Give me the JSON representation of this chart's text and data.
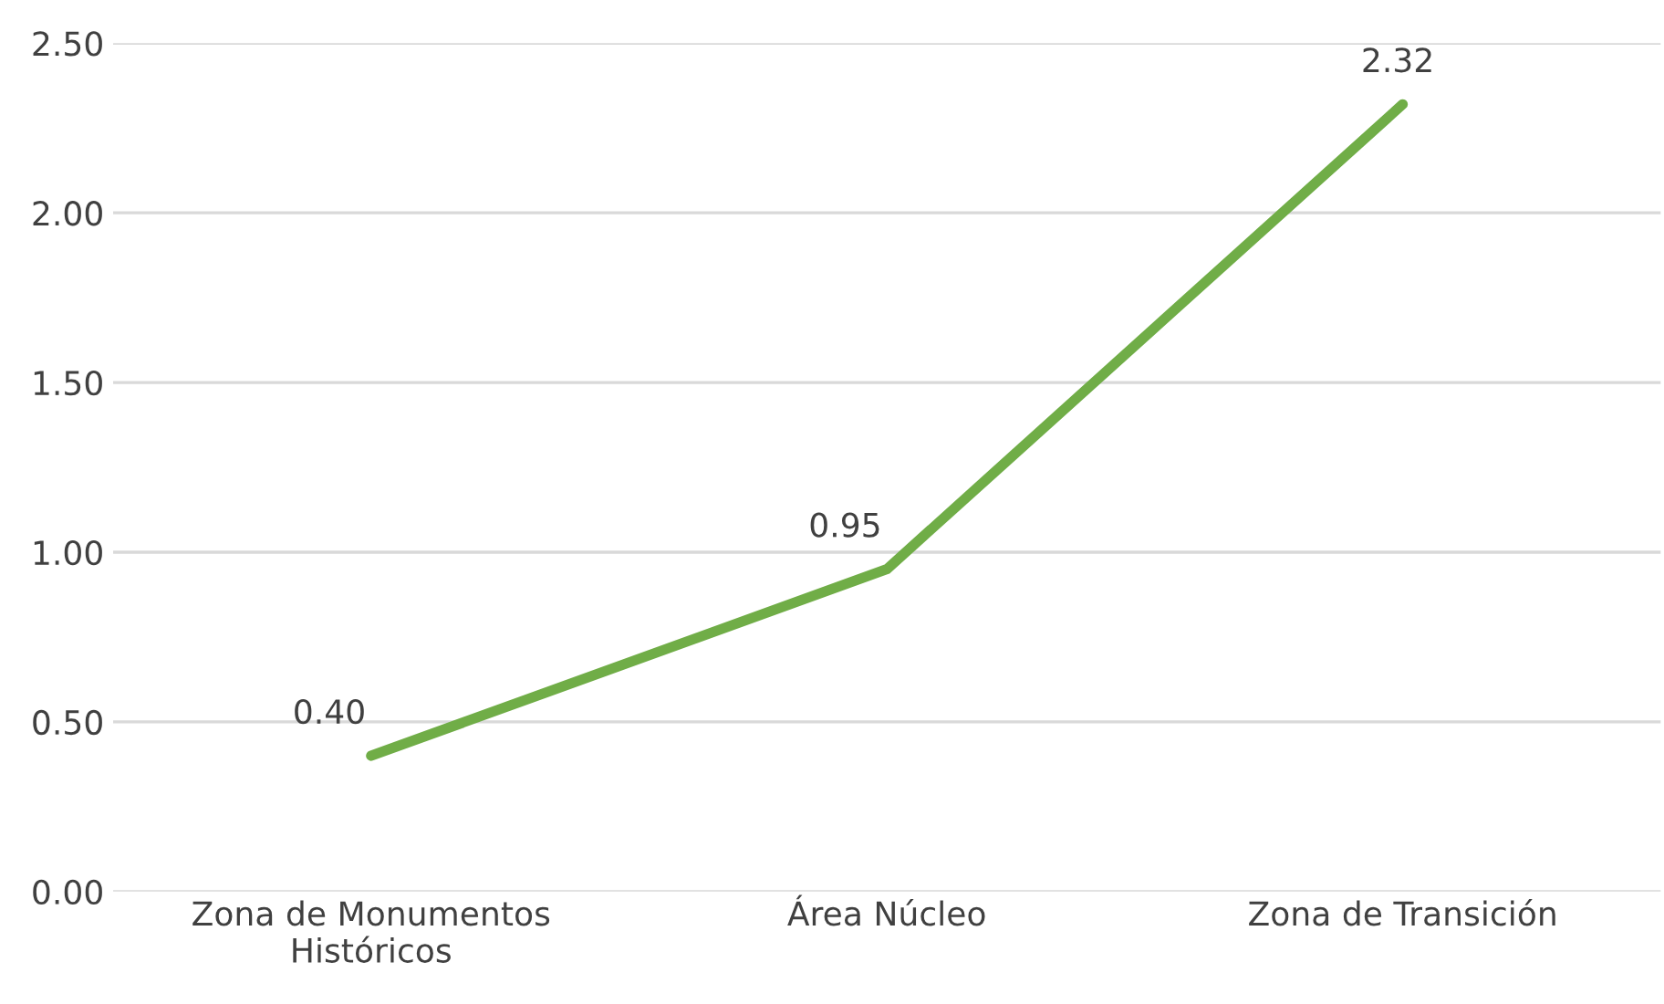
{
  "chart_data": {
    "type": "line",
    "categories": [
      "Zona de Monumentos\nHistóricos",
      "Área Núcleo",
      "Zona de Transición"
    ],
    "series": [
      {
        "color": "#70ad47",
        "values": [
          0.4,
          0.95,
          2.32
        ],
        "value_labels": [
          "0.40",
          "0.95",
          "2.32"
        ]
      }
    ],
    "ylim": [
      0,
      2.5
    ],
    "yticks": [
      {
        "value": 0,
        "label": "0.00"
      },
      {
        "value": 0.5,
        "label": "0.50"
      },
      {
        "value": 1,
        "label": "1.00"
      },
      {
        "value": 1.5,
        "label": "1.50"
      },
      {
        "value": 2,
        "label": "2.00"
      },
      {
        "value": 2.5,
        "label": "2.50"
      }
    ],
    "grid": "y",
    "legend": false,
    "marker": "none",
    "line_style": "solid"
  }
}
